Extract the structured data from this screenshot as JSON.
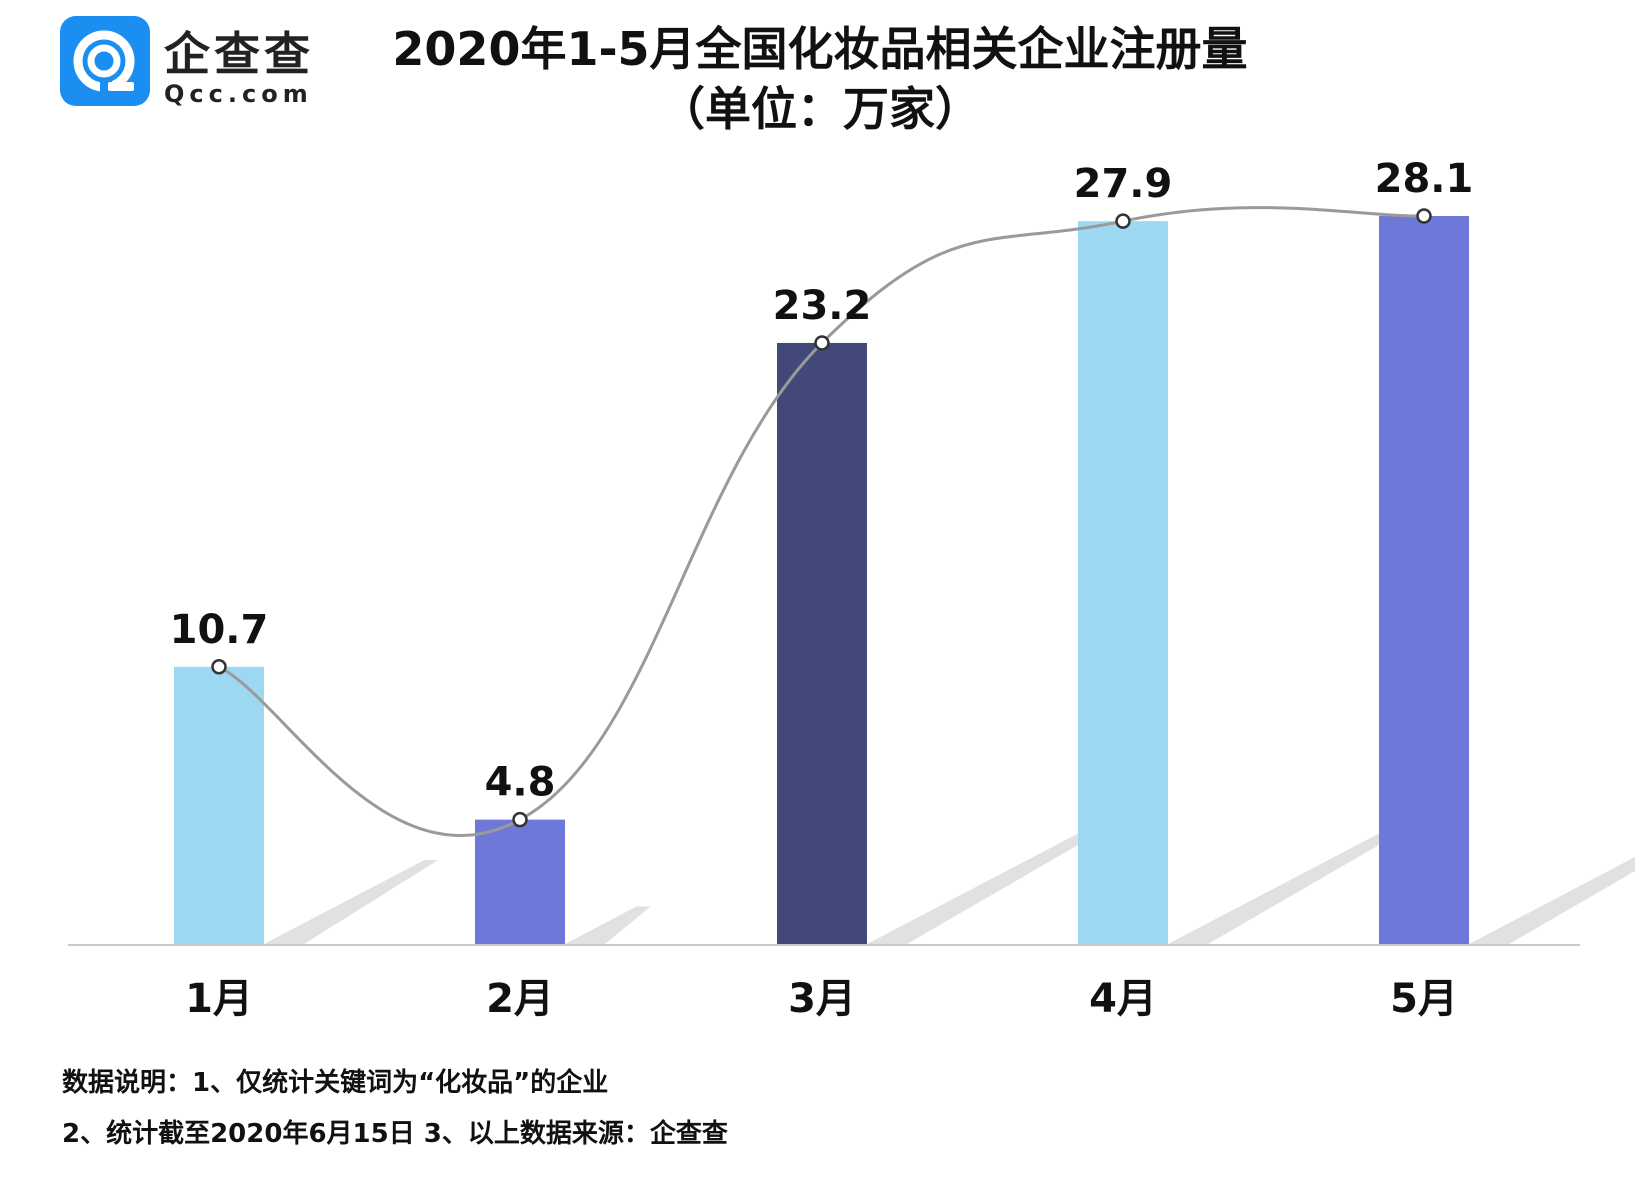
{
  "logo": {
    "name": "企查查",
    "domain": "Qcc.com",
    "color": "#1a8ef1"
  },
  "notes": {
    "line1": "数据说明：1、仅统计关键词为“化妆品”的企业",
    "line2": "2、统计截至2020年6月15日  3、以上数据来源：企查查"
  },
  "chart_data": {
    "type": "bar",
    "title": "2020年1-5月全国化妆品相关企业注册量",
    "subtitle": "（单位：万家）",
    "categories": [
      "1月",
      "2月",
      "3月",
      "4月",
      "5月"
    ],
    "values": [
      10.7,
      4.8,
      23.2,
      27.9,
      28.1
    ],
    "value_labels": [
      "10.7",
      "4.8",
      "23.2",
      "27.9",
      "28.1"
    ],
    "bar_colors": [
      "#9dd8f2",
      "#6d78d8",
      "#424979",
      "#9dd8f2",
      "#6d78d8"
    ],
    "trend_line": true,
    "ylim": [
      0,
      28.1
    ],
    "grid": false,
    "xlabel": "",
    "ylabel": ""
  }
}
